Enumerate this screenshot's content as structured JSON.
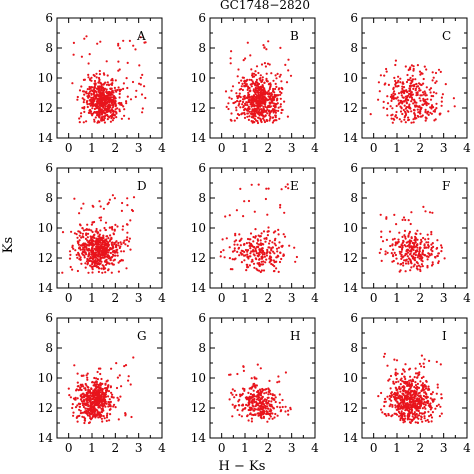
{
  "figure": {
    "title": "GC1748−2820",
    "xlabel": "H − Ks",
    "ylabel": "Ks"
  },
  "chart_data": {
    "type": "scatter",
    "grid": false,
    "panel_layout": "3x3",
    "point_color": "#e8141c",
    "xlim": [
      -0.5,
      4
    ],
    "ylim": [
      14,
      6
    ],
    "xticks": [
      0,
      1,
      2,
      3,
      4
    ],
    "yticks": [
      6,
      8,
      10,
      12,
      14
    ],
    "y_inverted": true,
    "points_are_estimated_cloud_parameters": true,
    "panels": [
      {
        "label": "A",
        "cloud": {
          "cx": 1.45,
          "cy": 11.5,
          "sx": 0.38,
          "sy": 0.75,
          "n": 520
        },
        "sparse": {
          "xmin": 0.2,
          "xmax": 3.3,
          "ymin": 7.2,
          "ymax": 12.8,
          "n": 60
        }
      },
      {
        "label": "B",
        "cloud": {
          "cx": 1.6,
          "cy": 11.5,
          "sx": 0.45,
          "sy": 0.8,
          "n": 560
        },
        "sparse": {
          "xmin": 0.2,
          "xmax": 3.0,
          "ymin": 7.5,
          "ymax": 12.8,
          "n": 60
        }
      },
      {
        "label": "C",
        "cloud": {
          "cx": 1.6,
          "cy": 11.4,
          "sx": 0.55,
          "sy": 0.85,
          "n": 280
        },
        "sparse": {
          "xmin": 0.3,
          "xmax": 3.0,
          "ymin": 8.8,
          "ymax": 12.8,
          "n": 50
        }
      },
      {
        "label": "D",
        "cloud": {
          "cx": 1.25,
          "cy": 11.4,
          "sx": 0.45,
          "sy": 0.75,
          "n": 520
        },
        "sparse": {
          "xmin": 0.1,
          "xmax": 2.8,
          "ymin": 7.8,
          "ymax": 12.8,
          "n": 60
        }
      },
      {
        "label": "E",
        "cloud": {
          "cx": 1.65,
          "cy": 11.6,
          "sx": 0.6,
          "sy": 0.65,
          "n": 230
        },
        "sparse": {
          "xmin": 0.0,
          "xmax": 3.0,
          "ymin": 7.0,
          "ymax": 12.5,
          "n": 40
        }
      },
      {
        "label": "F",
        "cloud": {
          "cx": 1.8,
          "cy": 11.5,
          "sx": 0.5,
          "sy": 0.6,
          "n": 240
        },
        "sparse": {
          "xmin": 0.3,
          "xmax": 3.0,
          "ymin": 8.5,
          "ymax": 12.8,
          "n": 40
        }
      },
      {
        "label": "G",
        "cloud": {
          "cx": 1.1,
          "cy": 11.5,
          "sx": 0.4,
          "sy": 0.7,
          "n": 480
        },
        "sparse": {
          "xmin": 0.0,
          "xmax": 2.8,
          "ymin": 8.5,
          "ymax": 12.8,
          "n": 40
        }
      },
      {
        "label": "H",
        "cloud": {
          "cx": 1.6,
          "cy": 11.6,
          "sx": 0.45,
          "sy": 0.65,
          "n": 280
        },
        "sparse": {
          "xmin": 0.3,
          "xmax": 2.6,
          "ymin": 9.0,
          "ymax": 12.8,
          "n": 30
        }
      },
      {
        "label": "I",
        "cloud": {
          "cx": 1.6,
          "cy": 11.5,
          "sx": 0.5,
          "sy": 0.75,
          "n": 500
        },
        "sparse": {
          "xmin": 0.3,
          "xmax": 3.0,
          "ymin": 8.2,
          "ymax": 12.8,
          "n": 60
        }
      }
    ]
  }
}
